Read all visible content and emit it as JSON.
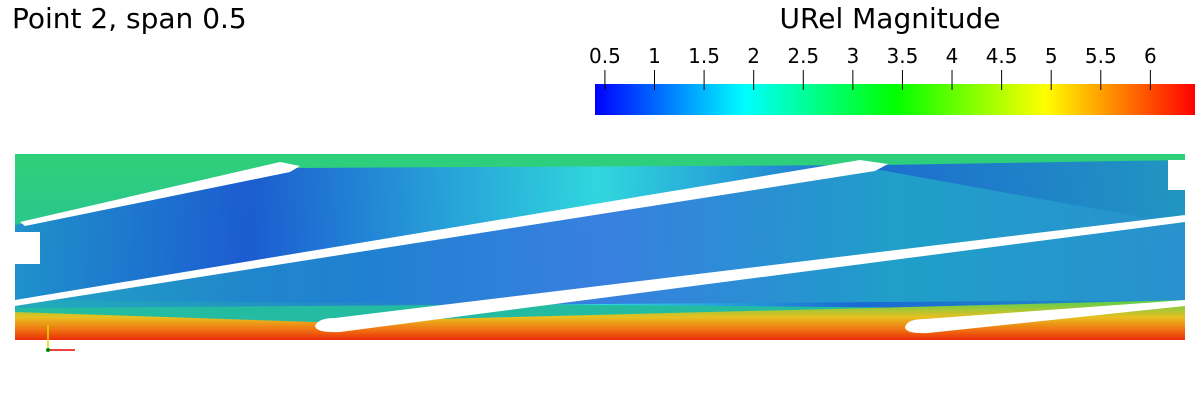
{
  "title": "Point 2, span 0.5",
  "colorbar": {
    "title": "URel Magnitude",
    "range": [
      0.4,
      6.45
    ],
    "ticks": [
      0.5,
      1,
      1.5,
      2,
      2.5,
      3,
      3.5,
      4,
      4.5,
      5,
      5.5,
      6
    ],
    "colors": [
      "#0000ff",
      "#00ffff",
      "#00ff00",
      "#ffff00",
      "#ff0000"
    ]
  }
}
